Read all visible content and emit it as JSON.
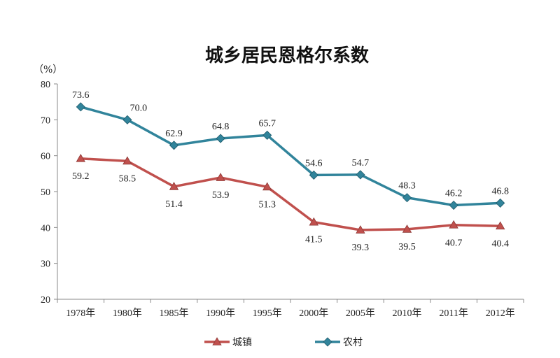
{
  "chart_data": {
    "type": "line",
    "title": "城乡居民恩格尔系数",
    "ylabel": "（%）",
    "xlabel": "",
    "ylim": [
      20,
      80
    ],
    "yticks": [
      20,
      30,
      40,
      50,
      60,
      70,
      80
    ],
    "grid": false,
    "legend_position": "bottom",
    "categories": [
      "1978年",
      "1980年",
      "1985年",
      "1990年",
      "1995年",
      "2000年",
      "2005年",
      "2010年",
      "2011年",
      "2012年"
    ],
    "series": [
      {
        "name": "城镇",
        "color": "#C0504D",
        "marker": "triangle",
        "values": [
          59.2,
          58.5,
          51.4,
          53.9,
          51.3,
          41.5,
          39.3,
          39.5,
          40.7,
          40.4
        ],
        "labels": [
          "59.2",
          "58.5",
          "51.4",
          "53.9",
          "51.3",
          "41.5",
          "39.3",
          "39.5",
          "40.7",
          "40.4"
        ]
      },
      {
        "name": "农村",
        "color": "#31849B",
        "marker": "diamond",
        "values": [
          73.6,
          70.0,
          62.9,
          64.8,
          65.7,
          54.6,
          54.7,
          48.3,
          46.2,
          46.8
        ],
        "labels": [
          "73.6",
          "70.0",
          "62.9",
          "64.8",
          "65.7",
          "54.6",
          "54.7",
          "48.3",
          "46.2",
          "46.8"
        ]
      }
    ]
  }
}
